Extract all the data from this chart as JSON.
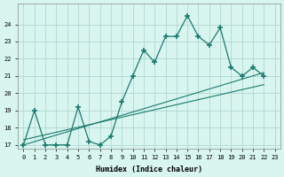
{
  "xlabel": "Humidex (Indice chaleur)",
  "bg_color": "#d8f5f0",
  "line_color": "#1a7a6e",
  "grid_color": "#b0d8d0",
  "xlim": [
    -0.5,
    23.5
  ],
  "ylim": [
    16.8,
    25.2
  ],
  "yticks": [
    17,
    18,
    19,
    20,
    21,
    22,
    23,
    24
  ],
  "xticks": [
    0,
    1,
    2,
    3,
    4,
    5,
    6,
    7,
    8,
    9,
    10,
    11,
    12,
    13,
    14,
    15,
    16,
    17,
    18,
    19,
    20,
    21,
    22,
    23
  ],
  "series_x": [
    0,
    1,
    2,
    3,
    4,
    5,
    6,
    7,
    8,
    9,
    10,
    11,
    12,
    13,
    14,
    15,
    16,
    17,
    18,
    19,
    20,
    21,
    22
  ],
  "series_y": [
    17,
    19,
    17,
    17,
    17,
    19.2,
    17.2,
    17,
    17.5,
    19.5,
    21,
    22.5,
    21.8,
    23.3,
    23.3,
    24.5,
    23.3,
    22.8,
    23.8,
    21.5,
    21,
    21.5,
    21
  ],
  "trend1_x": [
    0,
    22
  ],
  "trend1_y": [
    17.0,
    21.2
  ],
  "trend2_x": [
    0,
    22
  ],
  "trend2_y": [
    17.3,
    20.5
  ]
}
